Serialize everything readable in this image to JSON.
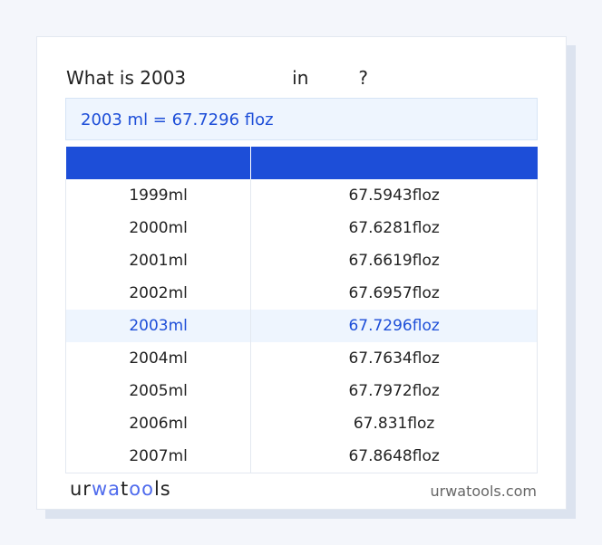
{
  "title": {
    "prefix": "What is 2003",
    "middle": "in",
    "suffix": "?"
  },
  "result": "2003 ml = 67.7296 floz",
  "table": {
    "headers": [
      "",
      ""
    ],
    "rows": [
      [
        "1999ml",
        "67.5943floz"
      ],
      [
        "2000ml",
        "67.6281floz"
      ],
      [
        "2001ml",
        "67.6619floz"
      ],
      [
        "2002ml",
        "67.6957floz"
      ],
      [
        "2003ml",
        "67.7296floz"
      ],
      [
        "2004ml",
        "67.7634floz"
      ],
      [
        "2005ml",
        "67.7972floz"
      ],
      [
        "2006ml",
        "67.831floz"
      ],
      [
        "2007ml",
        "67.8648floz"
      ]
    ],
    "highlight_index": 4
  },
  "footer": {
    "logo": "urwatools",
    "site": "urwatools.com"
  },
  "colors": {
    "accent": "#1d4ed8",
    "highlight_bg": "#eef5fe"
  }
}
